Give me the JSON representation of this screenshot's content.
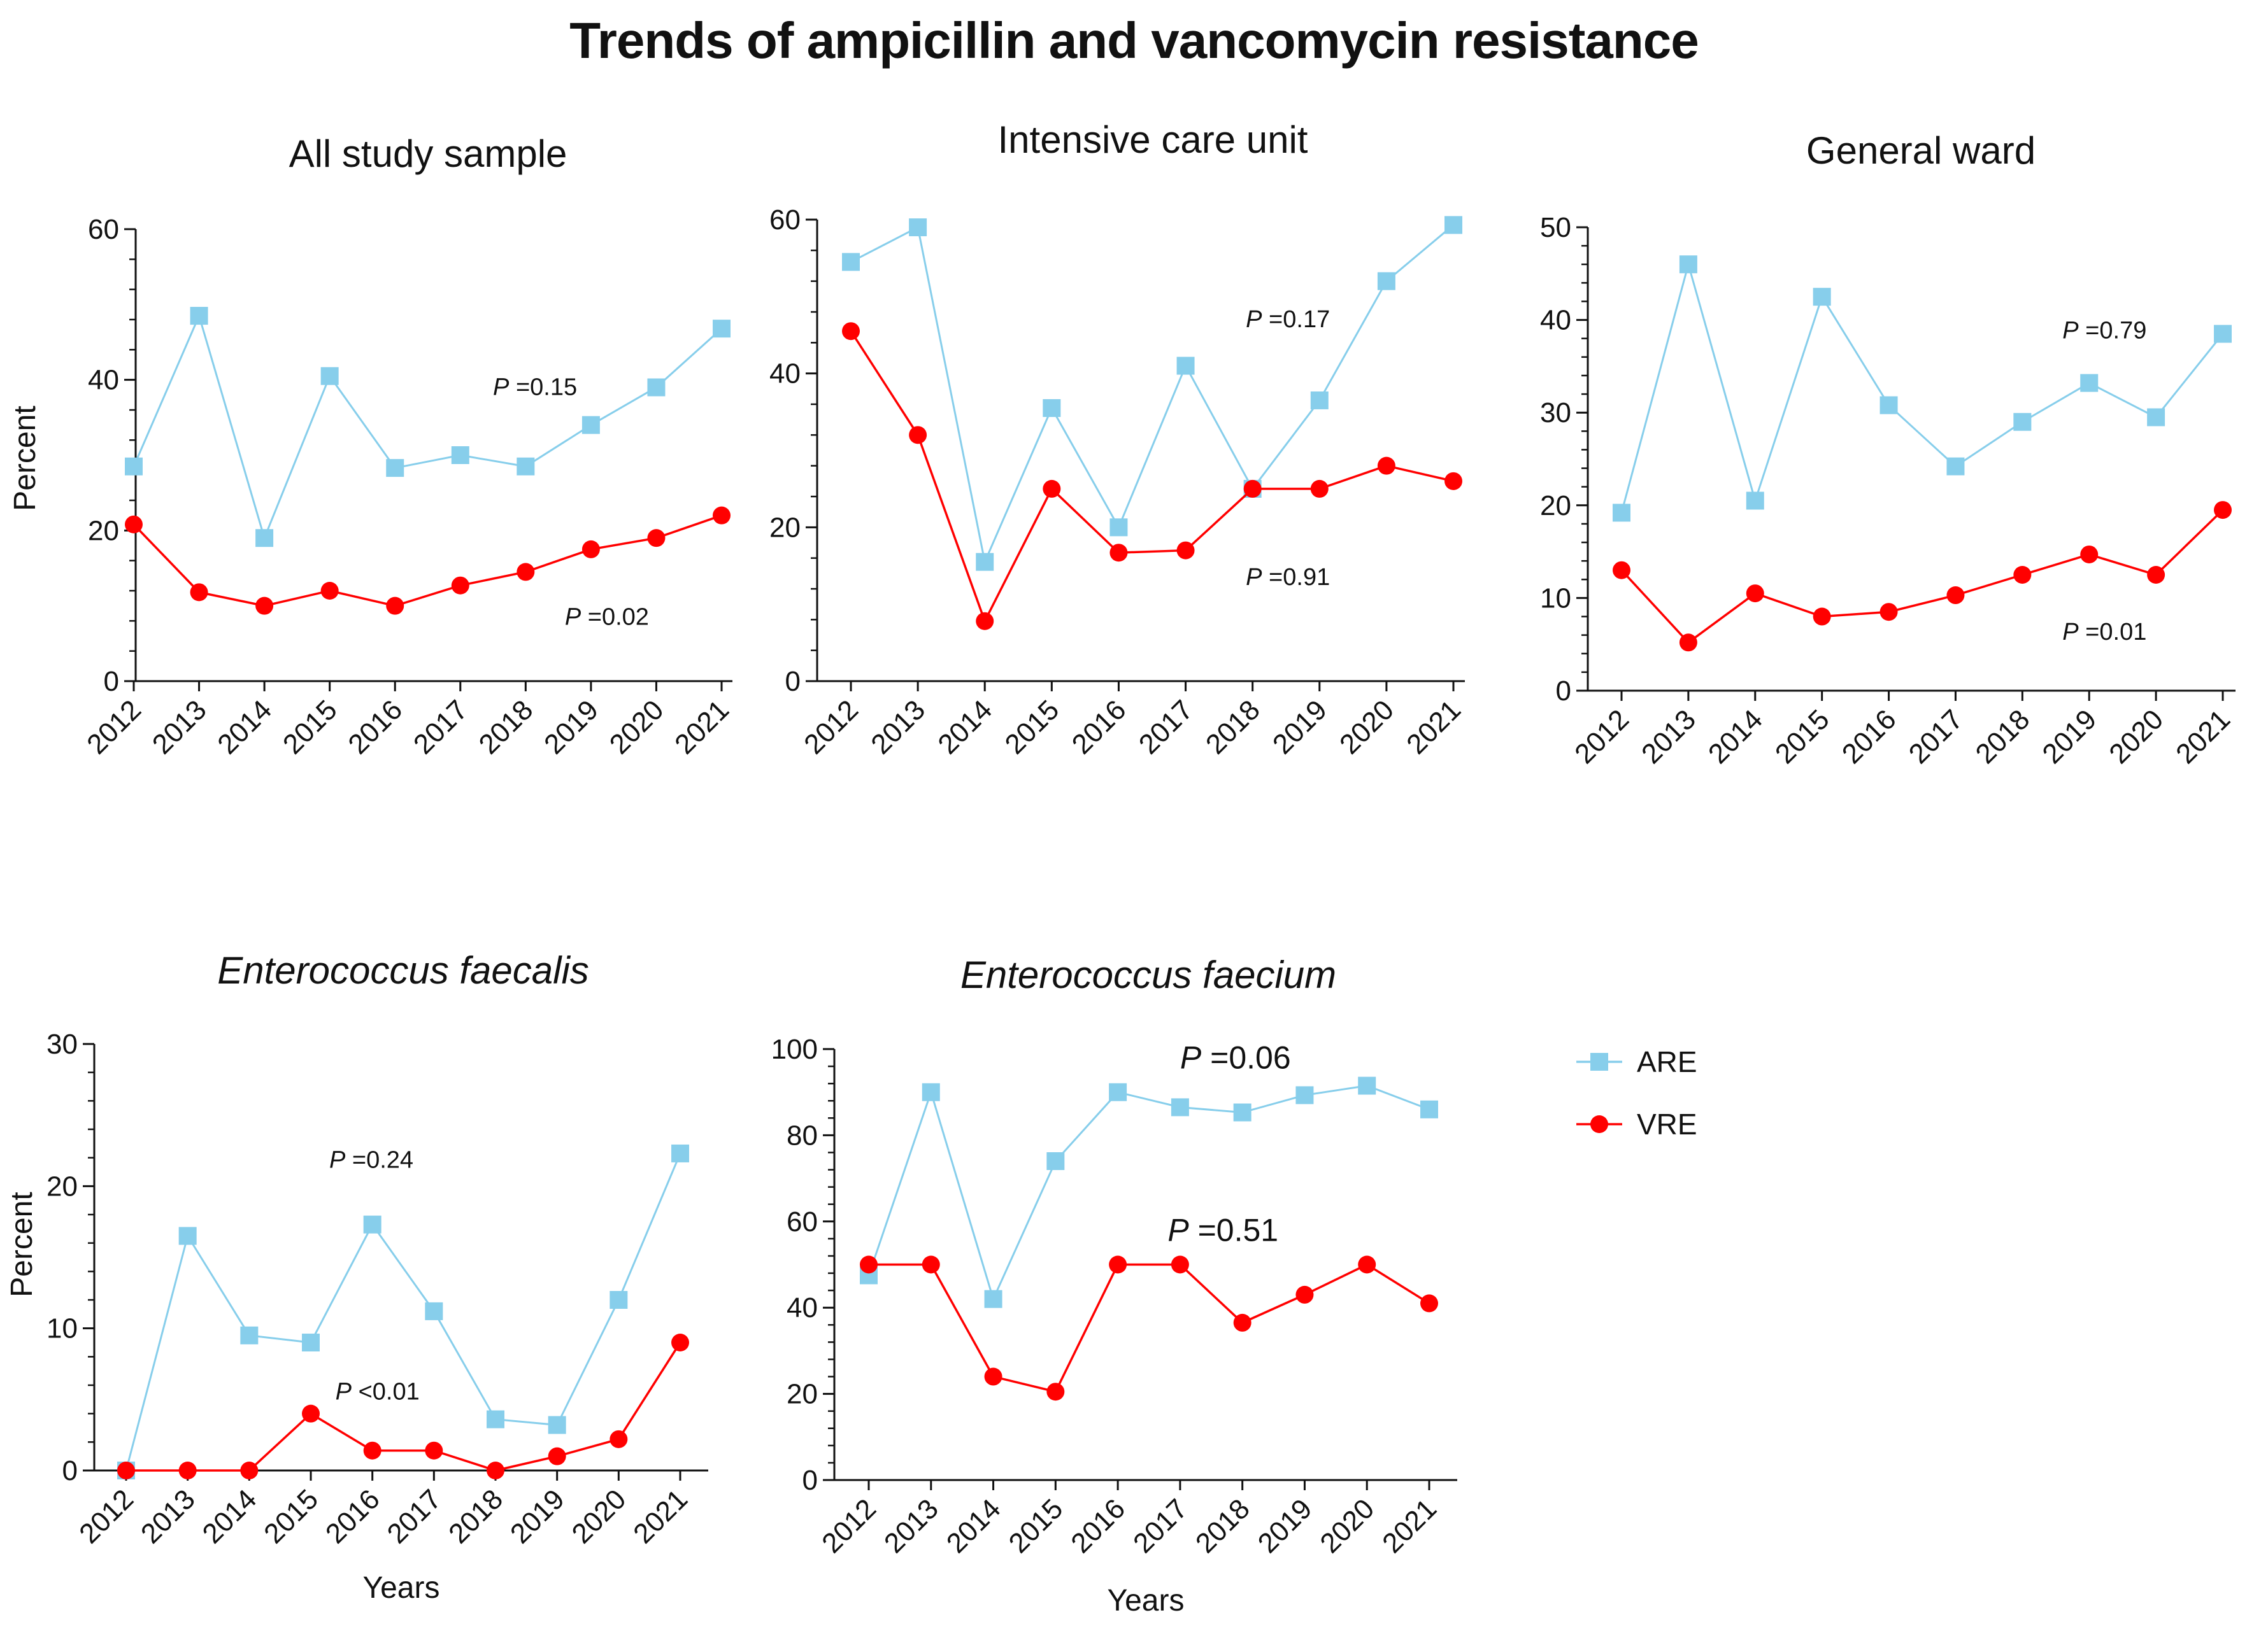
{
  "figure": {
    "title": "Trends of ampicillin and vancomycin resistance",
    "colors": {
      "ARE": "#87CEEB",
      "VRE": "#FF0000",
      "axis": "#111111"
    },
    "legend": [
      {
        "key": "ARE",
        "label": "ARE",
        "marker": "square"
      },
      {
        "key": "VRE",
        "label": "VRE",
        "marker": "circle"
      }
    ]
  },
  "chart_data": [
    {
      "type": "line",
      "title": "All study sample",
      "title_italic": false,
      "xlabel": "",
      "ylabel": "Percent",
      "ylim": [
        0,
        60
      ],
      "yticks": [
        0,
        20,
        40,
        60
      ],
      "yminor": 2,
      "categories": [
        "2012",
        "2013",
        "2014",
        "2015",
        "2016",
        "2017",
        "2018",
        "2019",
        "2020",
        "2021"
      ],
      "series": [
        {
          "name": "ARE",
          "values": [
            28.5,
            48.5,
            19,
            40.5,
            28.3,
            30,
            28.5,
            34,
            39,
            46.8
          ]
        },
        {
          "name": "VRE",
          "values": [
            20.8,
            11.8,
            10,
            12,
            10,
            12.7,
            14.5,
            17.5,
            19,
            22
          ]
        }
      ],
      "annotations": [
        {
          "series": "ARE",
          "text": "P =0.15",
          "at_x": 5.5,
          "at_y": 38
        },
        {
          "series": "VRE",
          "text": "P =0.02",
          "at_x": 6.6,
          "at_y": 7.5
        }
      ]
    },
    {
      "type": "line",
      "title": "Intensive care unit",
      "title_italic": false,
      "xlabel": "",
      "ylabel": "",
      "ylim": [
        0,
        60
      ],
      "yticks": [
        0,
        20,
        40,
        60
      ],
      "yminor": 2,
      "categories": [
        "2012",
        "2013",
        "2014",
        "2015",
        "2016",
        "2017",
        "2018",
        "2019",
        "2020",
        "2021"
      ],
      "series": [
        {
          "name": "ARE",
          "values": [
            54.5,
            59,
            15.5,
            35.5,
            20,
            41,
            25,
            36.5,
            52,
            59.3
          ]
        },
        {
          "name": "VRE",
          "values": [
            45.5,
            32,
            7.8,
            25,
            16.7,
            17,
            25,
            25,
            28,
            26
          ]
        }
      ],
      "annotations": [
        {
          "series": "ARE",
          "text": "P =0.17",
          "at_x": 5.9,
          "at_y": 46
        },
        {
          "series": "VRE",
          "text": "P =0.91",
          "at_x": 5.9,
          "at_y": 12.5
        }
      ]
    },
    {
      "type": "line",
      "title": "General ward",
      "title_italic": false,
      "xlabel": "",
      "ylabel": "",
      "ylim": [
        0,
        50
      ],
      "yticks": [
        0,
        10,
        20,
        30,
        40,
        50
      ],
      "yminor": 2,
      "categories": [
        "2012",
        "2013",
        "2014",
        "2015",
        "2016",
        "2017",
        "2018",
        "2019",
        "2020",
        "2021"
      ],
      "series": [
        {
          "name": "ARE",
          "values": [
            19.2,
            46,
            20.5,
            42.5,
            30.8,
            24.2,
            29,
            33.2,
            29.5,
            38.5
          ]
        },
        {
          "name": "VRE",
          "values": [
            13,
            5.2,
            10.5,
            8,
            8.5,
            10.3,
            12.5,
            14.7,
            12.5,
            19.5
          ]
        }
      ],
      "annotations": [
        {
          "series": "ARE",
          "text": "P =0.79",
          "at_x": 6.6,
          "at_y": 38
        },
        {
          "series": "VRE",
          "text": "P =0.01",
          "at_x": 6.6,
          "at_y": 5.5
        }
      ]
    },
    {
      "type": "line",
      "title": "Enterococcus faecalis",
      "title_italic": true,
      "xlabel": "Years",
      "ylabel": "Percent",
      "ylim": [
        0,
        30
      ],
      "yticks": [
        0,
        10,
        20,
        30
      ],
      "yminor": 2,
      "categories": [
        "2012",
        "2013",
        "2014",
        "2015",
        "2016",
        "2017",
        "2018",
        "2019",
        "2020",
        "2021"
      ],
      "series": [
        {
          "name": "ARE",
          "values": [
            0,
            16.5,
            9.5,
            9,
            17.3,
            11.2,
            3.6,
            3.2,
            12,
            22.3
          ]
        },
        {
          "name": "VRE",
          "values": [
            0,
            0,
            0,
            4,
            1.4,
            1.4,
            0,
            1,
            2.2,
            9
          ]
        }
      ],
      "annotations": [
        {
          "series": "ARE",
          "text": "P =0.24",
          "at_x": 3.3,
          "at_y": 21.3
        },
        {
          "series": "VRE",
          "text": "P <0.01",
          "at_x": 3.4,
          "at_y": 5
        }
      ]
    },
    {
      "type": "line",
      "title": "Enterococcus faecium",
      "title_italic": true,
      "xlabel": "Years",
      "ylabel": "",
      "ylim": [
        0,
        100
      ],
      "yticks": [
        0,
        20,
        40,
        60,
        80,
        100
      ],
      "yminor": 2,
      "categories": [
        "2012",
        "2013",
        "2014",
        "2015",
        "2016",
        "2017",
        "2018",
        "2019",
        "2020",
        "2021"
      ],
      "series": [
        {
          "name": "ARE",
          "values": [
            47.5,
            90,
            42,
            74,
            90,
            86.5,
            85.3,
            89.3,
            91.5,
            86
          ]
        },
        {
          "name": "VRE",
          "values": [
            50,
            50,
            24,
            20.5,
            50,
            50,
            36.5,
            43,
            50,
            41
          ]
        }
      ],
      "annotations": [
        {
          "series": "ARE",
          "text": "P =0.06",
          "at_x": 5,
          "at_y": 95.5,
          "large": true
        },
        {
          "series": "VRE",
          "text": "P =0.51",
          "at_x": 4.8,
          "at_y": 55.5,
          "large": true
        }
      ]
    }
  ]
}
